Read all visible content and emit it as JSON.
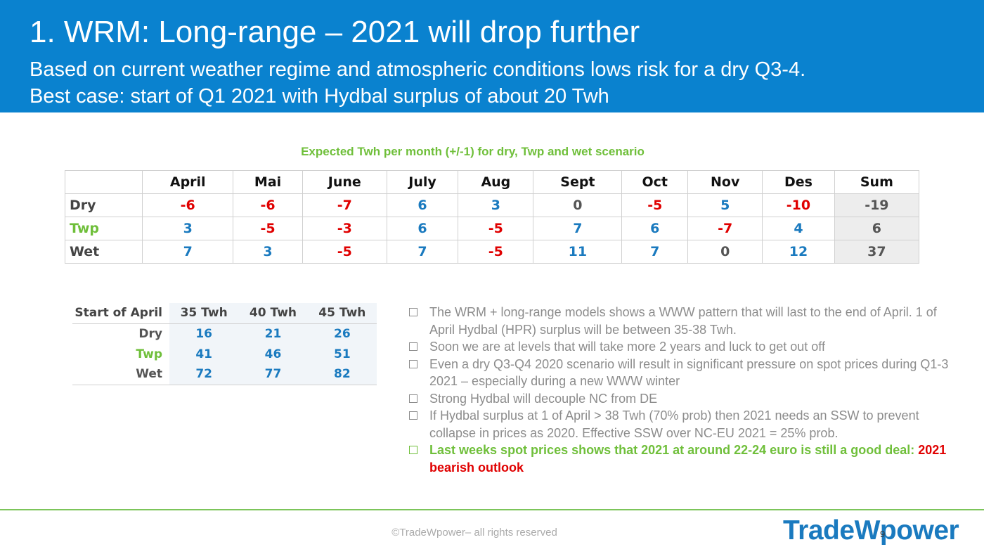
{
  "header": {
    "title": "1. WRM: Long-range – 2021 will drop further",
    "subtitle_line1": "Based on current weather regime and atmospheric conditions lows risk for a dry Q3-4.",
    "subtitle_line2": "Best case: start of Q1 2021 with Hydbal surplus of about 20 Twh"
  },
  "colors": {
    "header_bg": "#0a82cf",
    "green": "#6fbf3a",
    "red": "#e00000",
    "blue": "#1a7abf",
    "grey": "#8c8c8c"
  },
  "main_table": {
    "caption": "Expected Twh per month (+/-1) for dry, Twp and wet scenario",
    "columns": [
      "April",
      "Mai",
      "June",
      "July",
      "Aug",
      "Sept",
      "Oct",
      "Nov",
      "Des",
      "Sum"
    ],
    "rows": [
      {
        "label": "Dry",
        "values": [
          "-6",
          "-6",
          "-7",
          "6",
          "3",
          "0",
          "-5",
          "5",
          "-10"
        ],
        "sum": "-19"
      },
      {
        "label": "Twp",
        "values": [
          "3",
          "-5",
          "-3",
          "6",
          "-5",
          "7",
          "6",
          "-7",
          "4"
        ],
        "sum": "6"
      },
      {
        "label": "Wet",
        "values": [
          "7",
          "3",
          "-5",
          "7",
          "-5",
          "11",
          "7",
          "0",
          "12"
        ],
        "sum": "37"
      }
    ]
  },
  "side_table": {
    "corner": "Start of April",
    "columns": [
      "35 Twh",
      "40 Twh",
      "45 Twh"
    ],
    "rows": [
      {
        "label": "Dry",
        "values": [
          "16",
          "21",
          "26"
        ]
      },
      {
        "label": "Twp",
        "values": [
          "41",
          "46",
          "51"
        ]
      },
      {
        "label": "Wet",
        "values": [
          "72",
          "77",
          "82"
        ]
      }
    ]
  },
  "bullets": [
    "The WRM + long-range models shows a WWW pattern that will last to the end of April. 1 of April Hydbal (HPR) surplus will be between 35-38 Twh.",
    "Soon we are at levels that will take more 2 years and luck to get out off",
    "Even a dry Q3-Q4 2020 scenario will result in significant pressure on spot prices during Q1-3 2021 – especially during a new WWW winter",
    "Strong Hydbal will decouple NC from DE",
    "If Hydbal surplus at 1 of April > 38 Twh (70% prob) then 2021 needs an SSW to prevent collapse in prices as 2020. Effective SSW over NC-EU 2021 = 25% prob."
  ],
  "highlight_bullet": {
    "text": "Last weeks spot prices shows that 2021 at around 22-24 euro is still a good deal: ",
    "red_text": "2021 bearish outlook"
  },
  "footer": {
    "copyright": "©TradeWpower– all rights reserved",
    "logo_part1": "Trade",
    "logo_w": "W",
    "logo_part2": "power",
    "page_number": "9"
  }
}
